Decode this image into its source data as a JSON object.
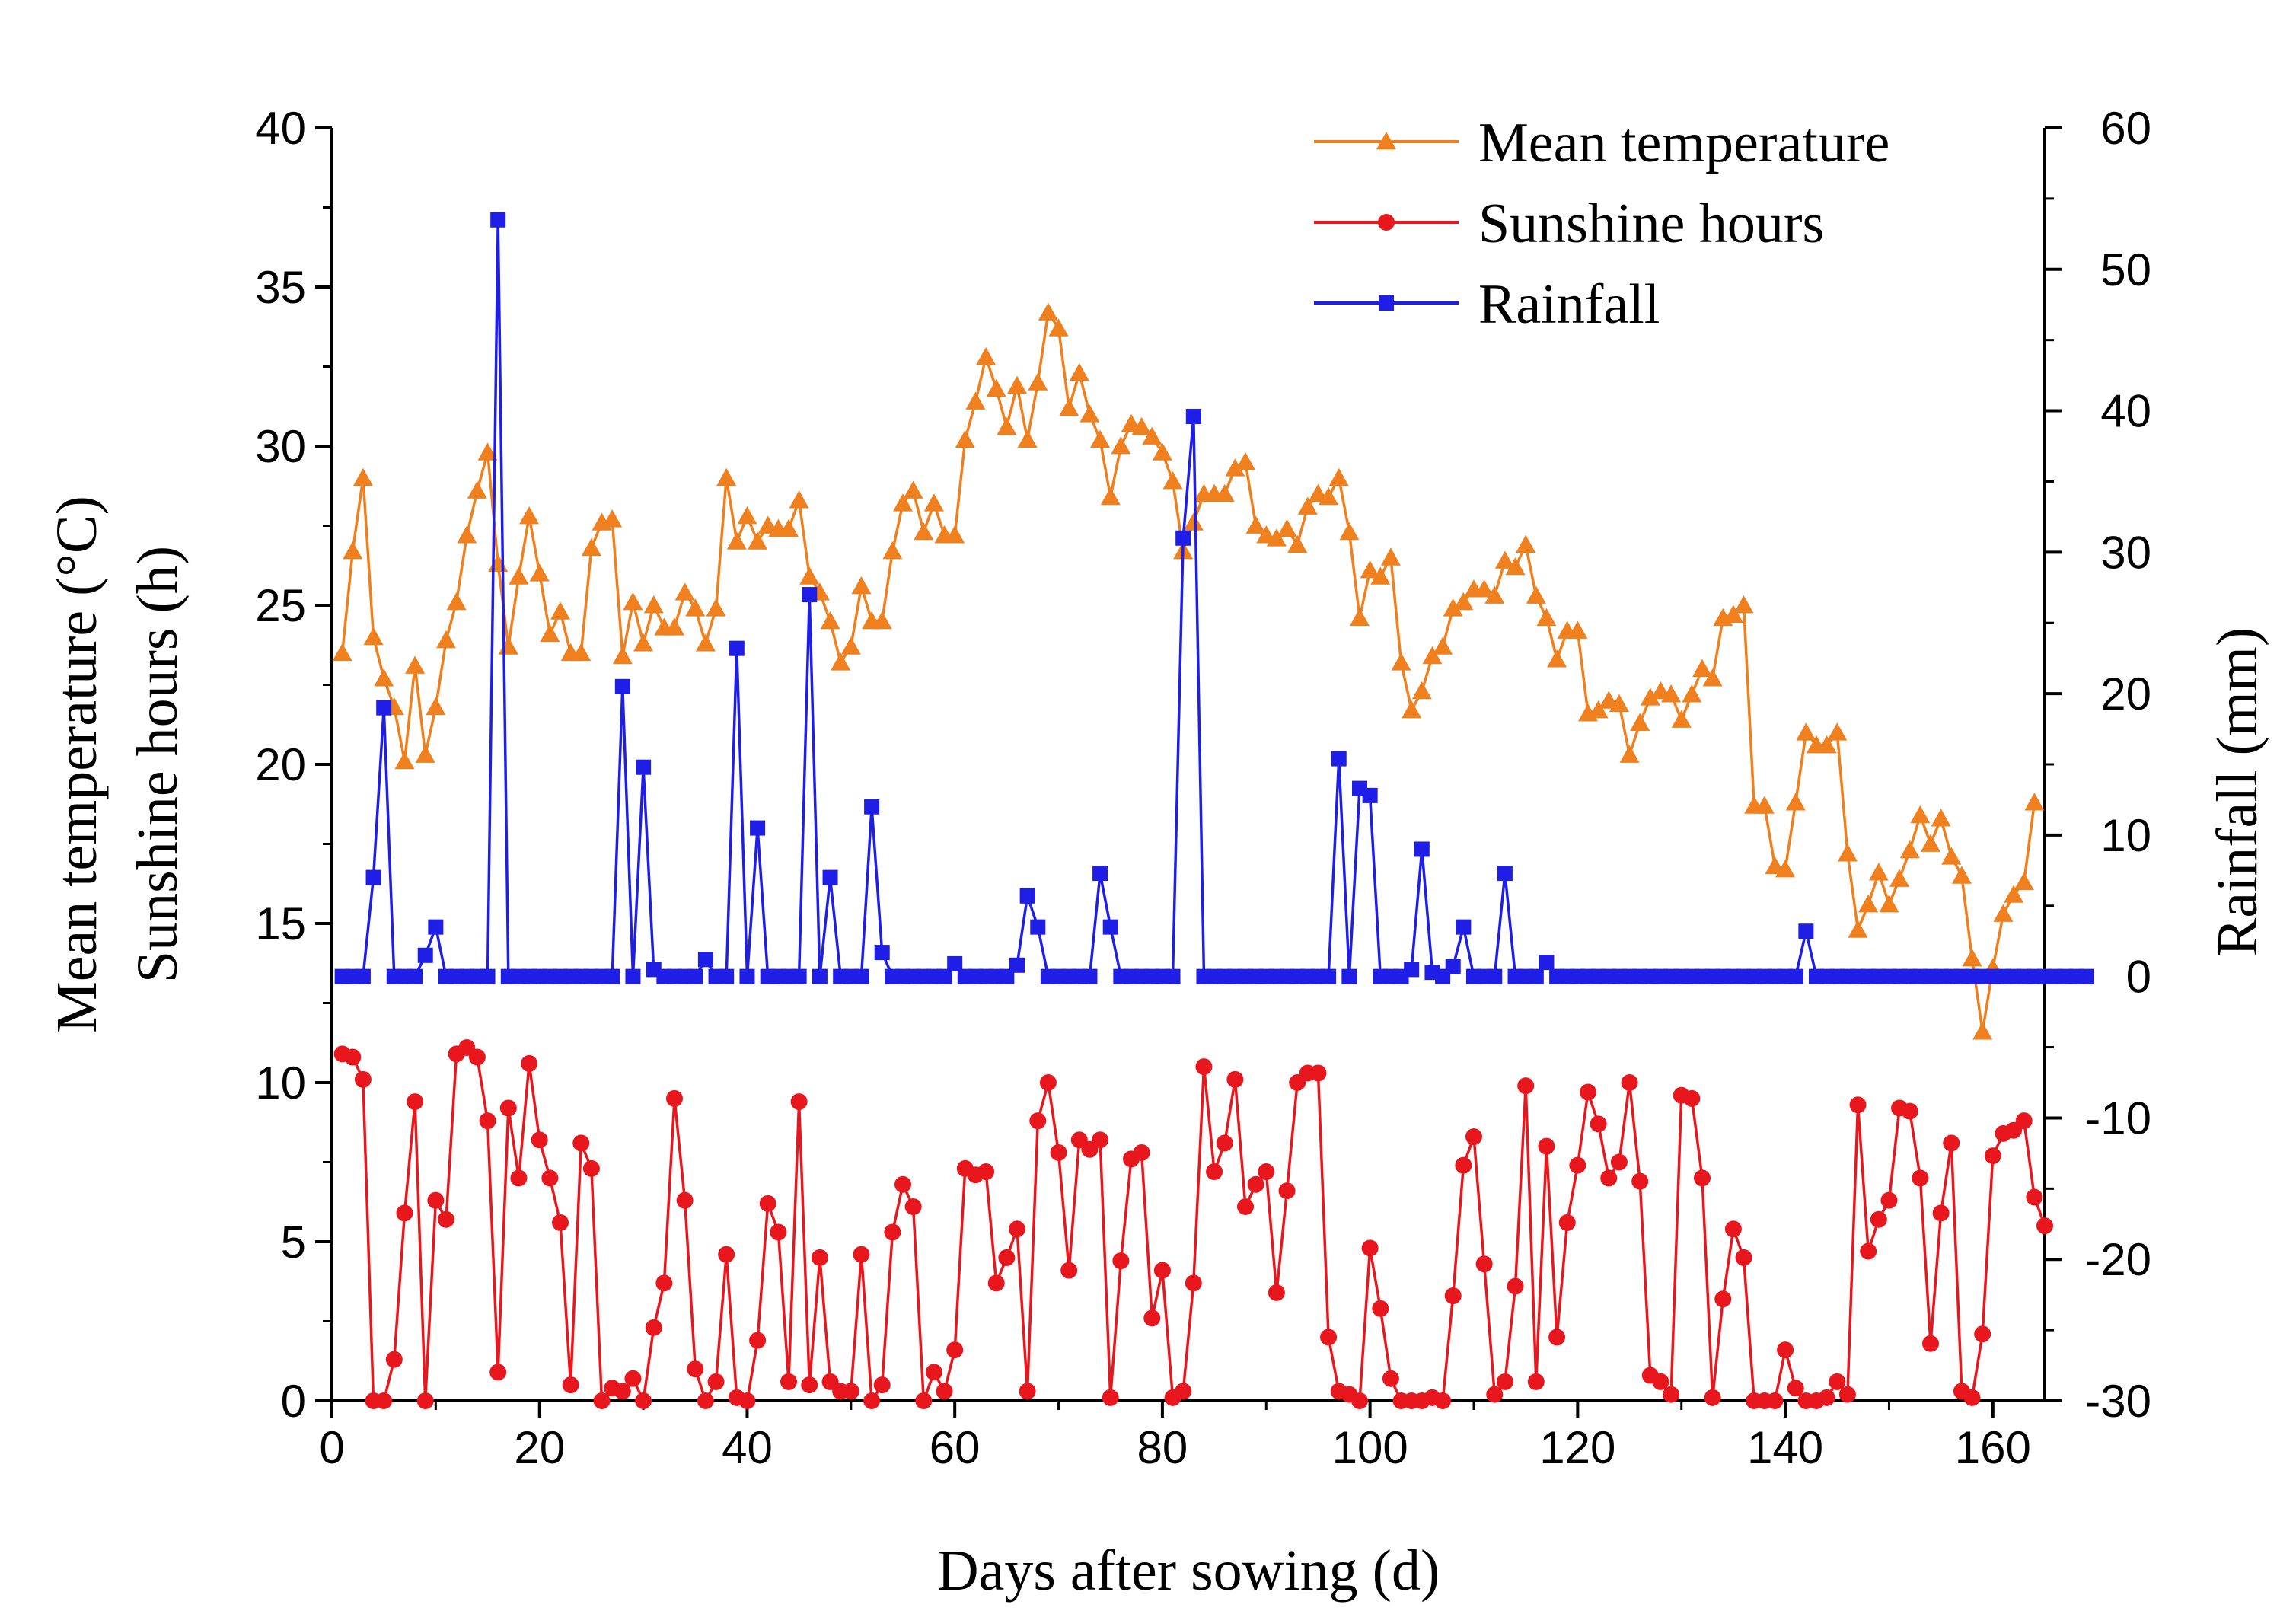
{
  "chart_data": {
    "type": "line",
    "title": "",
    "xlabel": "Days after sowing (d)",
    "ylabel_left": [
      "Mean temperature (°C)",
      "Sunshine hours (h)"
    ],
    "ylabel_right": "Rainfall (mm)",
    "xlim": [
      0,
      165
    ],
    "ylim_left": [
      0,
      40
    ],
    "ylim_right": [
      -30,
      60
    ],
    "xticks": [
      "0",
      "20",
      "40",
      "60",
      "80",
      "100",
      "120",
      "140",
      "160"
    ],
    "yticks_left": [
      "0",
      "5",
      "10",
      "15",
      "20",
      "25",
      "30",
      "35",
      "40"
    ],
    "yticks_right": [
      "-30",
      "-20",
      "-10",
      "0",
      "10",
      "20",
      "30",
      "40",
      "50",
      "60"
    ],
    "legend_position": "top-right",
    "series": [
      {
        "name": "Mean temperature",
        "axis": "left",
        "color": "#F07F1E",
        "marker": "triangle",
        "x_start": 1,
        "values": [
          23.5,
          26.7,
          29.0,
          24.0,
          22.7,
          21.8,
          20.1,
          23.1,
          20.3,
          21.8,
          23.9,
          25.1,
          27.2,
          28.6,
          29.8,
          26.3,
          23.7,
          25.9,
          27.8,
          26.0,
          24.1,
          24.8,
          23.5,
          23.5,
          26.8,
          27.6,
          27.7,
          23.4,
          25.1,
          23.8,
          25.0,
          24.3,
          24.3,
          25.4,
          24.9,
          23.8,
          24.9,
          29.0,
          27.0,
          27.8,
          27.0,
          27.5,
          27.4,
          27.4,
          28.3,
          25.9,
          25.4,
          24.5,
          23.2,
          23.7,
          25.6,
          24.5,
          24.5,
          26.7,
          28.2,
          28.6,
          27.3,
          28.2,
          27.2,
          27.2,
          30.2,
          31.4,
          32.8,
          31.8,
          30.6,
          31.9,
          30.2,
          32.0,
          34.2,
          33.7,
          31.2,
          32.3,
          31.0,
          30.2,
          28.4,
          30.0,
          30.7,
          30.6,
          30.3,
          29.8,
          28.9,
          26.7,
          27.6,
          28.5,
          28.5,
          28.5,
          29.3,
          29.5,
          27.5,
          27.2,
          27.1,
          27.4,
          26.9,
          28.1,
          28.5,
          28.4,
          29.0,
          27.3,
          24.6,
          26.1,
          25.9,
          26.5,
          23.2,
          21.7,
          22.3,
          23.4,
          23.7,
          24.9,
          25.1,
          25.5,
          25.5,
          25.3,
          26.4,
          26.2,
          26.9,
          25.3,
          24.6,
          23.3,
          24.2,
          24.2,
          21.6,
          21.7,
          22.0,
          21.9,
          20.3,
          21.3,
          22.1,
          22.3,
          22.2,
          21.4,
          22.2,
          23.0,
          22.7,
          24.6,
          24.7,
          25.0,
          18.7,
          18.7,
          16.8,
          16.7,
          18.8,
          21.0,
          20.6,
          20.6,
          21.0,
          17.2,
          14.8,
          15.6,
          16.6,
          15.6,
          16.4,
          17.3,
          18.4,
          17.5,
          18.3,
          17.1,
          16.5,
          13.9,
          11.6,
          13.6,
          15.3,
          15.9,
          16.3,
          18.8
        ]
      },
      {
        "name": "Sunshine hours",
        "axis": "left",
        "color": "#E8171E",
        "marker": "circle",
        "x_start": 1,
        "values": [
          10.9,
          10.8,
          10.1,
          0.0,
          0.0,
          1.3,
          5.9,
          9.4,
          0.0,
          6.3,
          5.7,
          10.9,
          11.1,
          10.8,
          8.8,
          0.9,
          9.2,
          7.0,
          10.6,
          8.2,
          7.0,
          5.6,
          0.5,
          8.1,
          7.3,
          0.0,
          0.4,
          0.3,
          0.7,
          0.0,
          2.3,
          3.7,
          9.5,
          6.3,
          1.0,
          0.0,
          0.6,
          4.6,
          0.1,
          0.0,
          1.9,
          6.2,
          5.3,
          0.6,
          9.4,
          0.5,
          4.5,
          0.6,
          0.3,
          0.3,
          4.6,
          0.0,
          0.5,
          5.3,
          6.8,
          6.1,
          0.0,
          0.9,
          0.3,
          1.6,
          7.3,
          7.1,
          7.2,
          3.7,
          4.5,
          5.4,
          0.3,
          8.8,
          10.0,
          7.8,
          4.1,
          8.2,
          7.9,
          8.2,
          0.1,
          4.4,
          7.6,
          7.8,
          2.6,
          4.1,
          0.1,
          0.3,
          3.7,
          10.5,
          7.2,
          8.1,
          10.1,
          6.1,
          6.8,
          7.2,
          3.4,
          6.6,
          10.0,
          10.3,
          10.3,
          2.0,
          0.3,
          0.2,
          0.0,
          4.8,
          2.9,
          0.7,
          0.0,
          0.0,
          0.0,
          0.1,
          0.0,
          3.3,
          7.4,
          8.3,
          4.3,
          0.2,
          0.6,
          3.6,
          9.9,
          0.6,
          8.0,
          2.0,
          5.6,
          7.4,
          9.7,
          8.7,
          7.0,
          7.5,
          10.0,
          6.9,
          0.8,
          0.6,
          0.2,
          9.6,
          9.5,
          7.0,
          0.1,
          3.2,
          5.4,
          4.5,
          0.0,
          0.0,
          0.0,
          1.6,
          0.4,
          0.0,
          0.0,
          0.1,
          0.6,
          0.2,
          9.3,
          4.7,
          5.7,
          6.3,
          9.2,
          9.1,
          7.0,
          1.8,
          5.9,
          8.1,
          0.3,
          0.1,
          2.1,
          7.7,
          8.4,
          8.5,
          8.8,
          6.4,
          5.5
        ]
      },
      {
        "name": "Rainfall",
        "axis": "right",
        "color": "#1E1EE6",
        "marker": "square",
        "x_start": 1,
        "values": [
          0,
          0,
          0,
          7.0,
          19.0,
          0,
          0,
          0,
          1.5,
          3.5,
          0,
          0,
          0,
          0,
          0,
          53.5,
          0,
          0,
          0,
          0,
          0,
          0,
          0,
          0,
          0,
          0,
          0,
          20.5,
          0,
          14.8,
          0.5,
          0,
          0,
          0,
          0,
          1.2,
          0,
          0,
          23.2,
          0,
          10.5,
          0,
          0,
          0,
          0,
          27.0,
          0,
          7.0,
          0,
          0,
          0,
          12.0,
          1.7,
          0,
          0,
          0,
          0,
          0,
          0,
          0.9,
          0,
          0,
          0,
          0,
          0,
          0.8,
          5.7,
          3.5,
          0,
          0,
          0,
          0,
          0,
          7.3,
          3.5,
          0,
          0,
          0,
          0,
          0,
          0,
          31.0,
          39.6,
          0,
          0,
          0,
          0,
          0,
          0,
          0,
          0,
          0,
          0,
          0,
          0,
          0,
          15.4,
          0,
          13.3,
          12.8,
          0,
          0,
          0,
          0.5,
          9.0,
          0.3,
          0,
          0.7,
          3.5,
          0,
          0,
          0,
          7.3,
          0,
          0,
          0,
          1.0,
          0,
          0,
          0,
          0,
          0,
          0,
          0,
          0,
          0,
          0,
          0,
          0,
          0,
          0,
          0,
          0,
          0,
          0,
          0,
          0,
          0,
          0,
          0,
          0,
          3.2,
          0,
          0,
          0,
          0,
          0,
          0,
          0,
          0,
          0,
          0,
          0,
          0,
          0,
          0,
          0,
          0,
          0,
          0,
          0,
          0,
          0,
          0,
          0,
          0,
          0,
          0,
          0
        ]
      }
    ]
  }
}
